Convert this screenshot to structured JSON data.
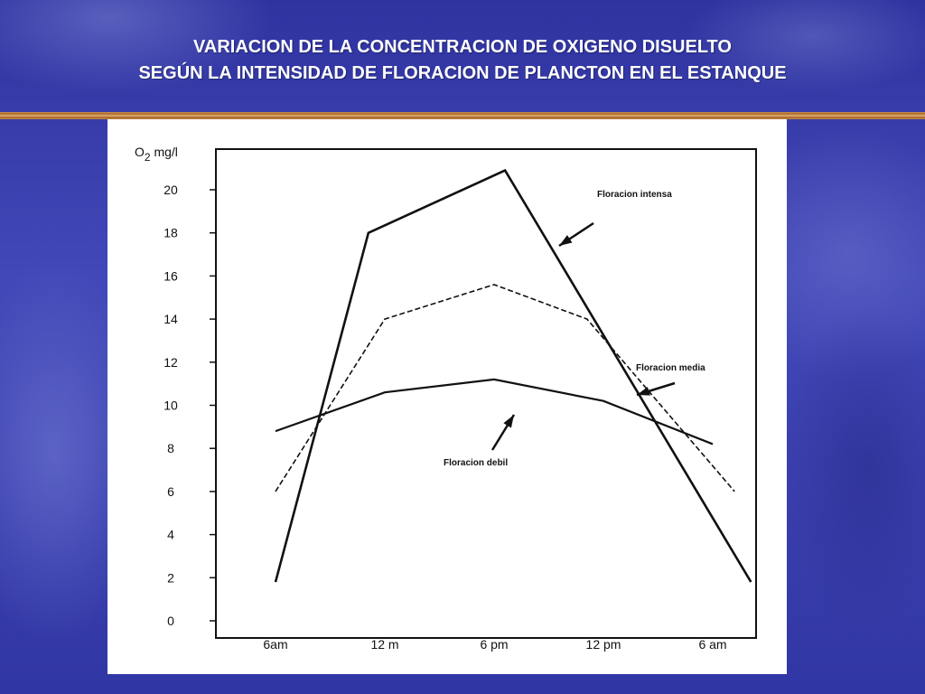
{
  "slide": {
    "title_line1": "VARIACION DE LA CONCENTRACION DE OXIGENO DISUELTO",
    "title_line2": "SEGÚN LA INTENSIDAD DE FLORACION DE PLANCTON EN EL ESTANQUE"
  },
  "colors": {
    "background": "#3a3fb0",
    "title_text": "#ffffff",
    "rule": "#c9954a",
    "series_line": "#111111"
  },
  "chart_data": {
    "type": "line",
    "title": "",
    "ylabel": "O2 mg/l",
    "xlabel": "",
    "categories": [
      "6am",
      "12 m",
      "6 pm",
      "12 pm",
      "6 am"
    ],
    "ylim": [
      0,
      21
    ],
    "yticks": [
      0,
      2,
      4,
      6,
      8,
      10,
      12,
      14,
      16,
      18,
      20
    ],
    "grid": false,
    "series": [
      {
        "name": "Floracion intensa",
        "style": "solid-thick",
        "points": [
          {
            "x": 0,
            "y": 1.8
          },
          {
            "x": 0.85,
            "y": 18.0
          },
          {
            "x": 2.1,
            "y": 20.9
          },
          {
            "x": 4.35,
            "y": 1.8
          }
        ]
      },
      {
        "name": "Floracion media",
        "style": "dashed",
        "points": [
          {
            "x": 0,
            "y": 6.0
          },
          {
            "x": 1.0,
            "y": 14.0
          },
          {
            "x": 2.0,
            "y": 15.6
          },
          {
            "x": 2.85,
            "y": 14.0
          },
          {
            "x": 4.2,
            "y": 6.0
          }
        ]
      },
      {
        "name": "Floracion debil",
        "style": "solid",
        "points": [
          {
            "x": 0,
            "y": 8.8
          },
          {
            "x": 1.0,
            "y": 10.6
          },
          {
            "x": 2.0,
            "y": 11.2
          },
          {
            "x": 3.0,
            "y": 10.2
          },
          {
            "x": 4.0,
            "y": 8.2
          }
        ]
      }
    ],
    "annotations": [
      {
        "text": "Floracion intensa",
        "series": "Floracion intensa",
        "placement": "upper-right",
        "arrow": "down-left"
      },
      {
        "text": "Floracion media",
        "series": "Floracion media",
        "placement": "right",
        "arrow": "left"
      },
      {
        "text": "Floracion debil",
        "series": "Floracion debil",
        "placement": "lower-center",
        "arrow": "up-right"
      }
    ]
  }
}
